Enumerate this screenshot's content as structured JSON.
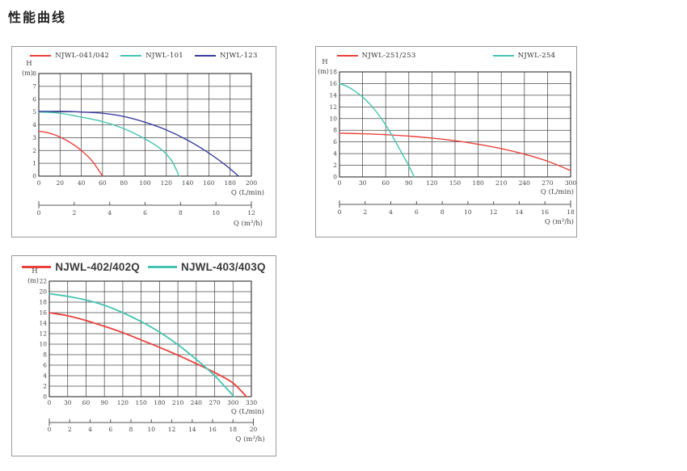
{
  "page": {
    "title": "性能曲线"
  },
  "chart_data": [
    {
      "type": "line",
      "title": "",
      "ylabel": "H",
      "ylabel_unit": "(m)",
      "xlabel": "Q (L/min)",
      "x2label": "Q (m³/h)",
      "grid": true,
      "legend_position": "top",
      "ylim": [
        0,
        8
      ],
      "ystep": 1,
      "xlim": [
        0,
        200
      ],
      "xstep": 20,
      "x2lim": [
        0,
        12
      ],
      "x2step": 2,
      "yticks": [
        0,
        1,
        2,
        3,
        4,
        5,
        6,
        7,
        8
      ],
      "xticks": [
        0,
        20,
        40,
        60,
        80,
        100,
        120,
        140,
        160,
        180,
        200
      ],
      "x2ticks": [
        0,
        2,
        4,
        6,
        8,
        10,
        12
      ],
      "series": [
        {
          "name": "NJWL-041/042",
          "color": "#e8413c",
          "points": [
            [
              0,
              3.5
            ],
            [
              10,
              3.35
            ],
            [
              20,
              3.05
            ],
            [
              30,
              2.6
            ],
            [
              40,
              2.0
            ],
            [
              50,
              1.2
            ],
            [
              60,
              0
            ]
          ]
        },
        {
          "name": "NJWL-101",
          "color": "#45c3b2",
          "points": [
            [
              0,
              5.0
            ],
            [
              20,
              4.9
            ],
            [
              40,
              4.6
            ],
            [
              60,
              4.25
            ],
            [
              80,
              3.7
            ],
            [
              100,
              2.9
            ],
            [
              115,
              2.1
            ],
            [
              125,
              1.2
            ],
            [
              132,
              0
            ]
          ]
        },
        {
          "name": "NJWL-123",
          "color": "#3b3e9f",
          "points": [
            [
              0,
              5.05
            ],
            [
              20,
              5.05
            ],
            [
              40,
              5.0
            ],
            [
              60,
              4.9
            ],
            [
              80,
              4.65
            ],
            [
              100,
              4.2
            ],
            [
              120,
              3.6
            ],
            [
              140,
              2.8
            ],
            [
              160,
              1.8
            ],
            [
              175,
              0.9
            ],
            [
              188,
              0
            ]
          ]
        }
      ]
    },
    {
      "type": "line",
      "title": "",
      "ylabel": "H",
      "ylabel_unit": "(m)",
      "xlabel": "Q (L/min)",
      "x2label": "Q (m³/h)",
      "grid": true,
      "legend_position": "top",
      "ylim": [
        0,
        18
      ],
      "ystep": 2,
      "xlim": [
        0,
        300
      ],
      "xstep": 30,
      "x2lim": [
        0,
        18
      ],
      "x2step": 2,
      "yticks": [
        0,
        2,
        4,
        6,
        8,
        10,
        12,
        14,
        16,
        18
      ],
      "xticks": [
        0,
        30,
        60,
        90,
        120,
        150,
        180,
        210,
        240,
        270,
        300
      ],
      "x2ticks": [
        0,
        2,
        4,
        6,
        8,
        10,
        12,
        14,
        16,
        18
      ],
      "series": [
        {
          "name": "NJWL-251/253",
          "color": "#e8413c",
          "points": [
            [
              0,
              7.5
            ],
            [
              30,
              7.4
            ],
            [
              60,
              7.25
            ],
            [
              90,
              7.0
            ],
            [
              120,
              6.65
            ],
            [
              150,
              6.2
            ],
            [
              180,
              5.6
            ],
            [
              210,
              4.85
            ],
            [
              240,
              3.9
            ],
            [
              270,
              2.7
            ],
            [
              300,
              1.1
            ]
          ]
        },
        {
          "name": "NJWL-254",
          "color": "#45c3b2",
          "points": [
            [
              0,
              16
            ],
            [
              10,
              15.5
            ],
            [
              20,
              14.7
            ],
            [
              30,
              13.7
            ],
            [
              40,
              12.4
            ],
            [
              50,
              10.8
            ],
            [
              60,
              8.9
            ],
            [
              70,
              6.7
            ],
            [
              80,
              4.3
            ],
            [
              90,
              1.9
            ],
            [
              97,
              0
            ]
          ]
        }
      ]
    },
    {
      "type": "line",
      "title": "",
      "ylabel": "H",
      "ylabel_unit": "(m)",
      "xlabel": "Q (L/min)",
      "x2label": "Q (m³/h)",
      "grid": true,
      "legend_position": "top",
      "ylim": [
        0,
        22
      ],
      "ystep": 2,
      "xlim": [
        0,
        330
      ],
      "xstep": 30,
      "x2lim": [
        0,
        20
      ],
      "x2step": 2,
      "yticks": [
        0,
        2,
        4,
        6,
        8,
        10,
        12,
        14,
        16,
        18,
        20,
        22
      ],
      "xticks": [
        0,
        30,
        60,
        90,
        120,
        150,
        180,
        210,
        240,
        270,
        300,
        330
      ],
      "x2ticks": [
        0,
        2,
        4,
        6,
        8,
        10,
        12,
        14,
        16,
        18,
        20
      ],
      "series": [
        {
          "name": "NJWL-402/402Q",
          "color": "#e8413c",
          "points": [
            [
              0,
              16
            ],
            [
              30,
              15.4
            ],
            [
              60,
              14.5
            ],
            [
              90,
              13.4
            ],
            [
              120,
              12.2
            ],
            [
              150,
              10.8
            ],
            [
              180,
              9.4
            ],
            [
              210,
              7.9
            ],
            [
              240,
              6.3
            ],
            [
              270,
              4.6
            ],
            [
              300,
              2.6
            ],
            [
              322,
              0
            ]
          ]
        },
        {
          "name": "NJWL-403/403Q",
          "color": "#45c3b2",
          "points": [
            [
              0,
              19.6
            ],
            [
              30,
              19.1
            ],
            [
              60,
              18.4
            ],
            [
              90,
              17.4
            ],
            [
              120,
              16.0
            ],
            [
              150,
              14.3
            ],
            [
              180,
              12.3
            ],
            [
              210,
              9.9
            ],
            [
              240,
              7.1
            ],
            [
              270,
              4.0
            ],
            [
              290,
              1.5
            ],
            [
              302,
              0
            ]
          ]
        }
      ]
    }
  ]
}
